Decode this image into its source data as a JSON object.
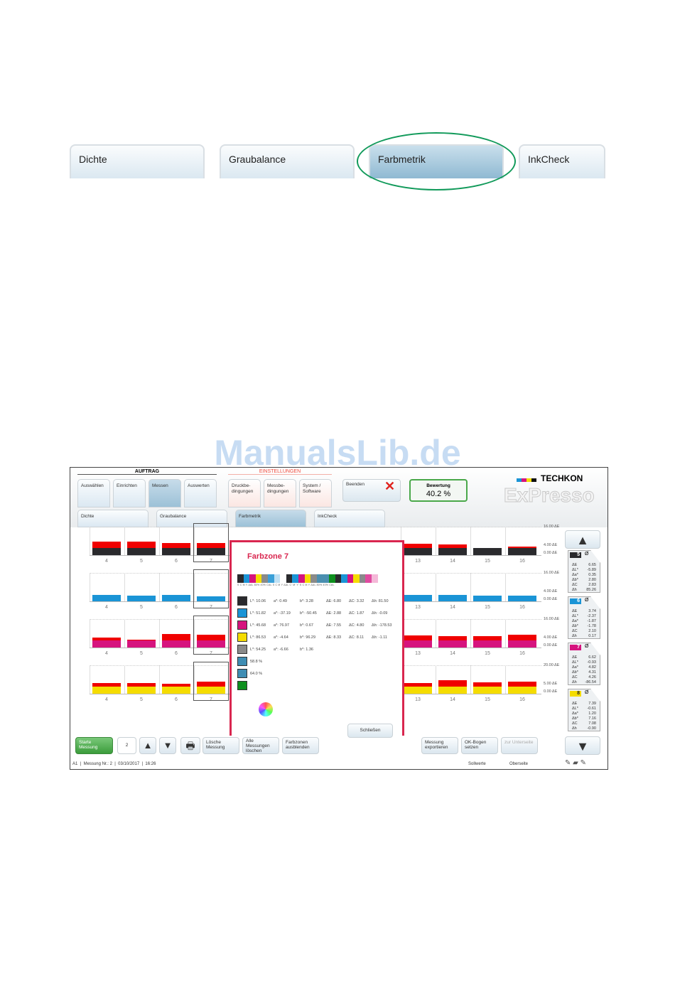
{
  "top_tabs": [
    {
      "label": "Dichte"
    },
    {
      "label": "Graubalance"
    },
    {
      "label": "Farbmetrik",
      "selected": true
    },
    {
      "label": "InkCheck"
    }
  ],
  "highlight_color": "#119a5a",
  "watermark": "ManualsLib.de",
  "app": {
    "group_auftrag": "AUFTRAG",
    "group_einstellungen": "EINSTELLUNGEN",
    "nav": [
      "Auswählen",
      "Einrichten",
      "Messen",
      "Auswerten"
    ],
    "settings": [
      "Druckbe-\ndingungen",
      "Messbe-\ndingungen",
      "System /\nSoftware"
    ],
    "quit": "Beenden",
    "rating_label": "Bewertung",
    "rating_value": "40.2 %",
    "brand": "TECHKON",
    "product": "ExPresso",
    "subtabs": [
      "Dichte",
      "Graubalance",
      "Farbmetrik",
      "InkCheck"
    ],
    "zones_left": [
      "4",
      "5",
      "6",
      "7"
    ],
    "zones_right": [
      "13",
      "14",
      "15",
      "16"
    ],
    "rows": [
      {
        "color": "#2a2a2d",
        "axis": [
          "16.00 ΔE",
          "4.00 ΔE",
          "0.00 ΔE"
        ],
        "max": 16,
        "tol": 4,
        "values": [
          7.5,
          7.8,
          7.0,
          6.8,
          6.5,
          6.0,
          4.0,
          5.0
        ]
      },
      {
        "color": "#1a94d6",
        "axis": [
          "16.00 ΔE",
          "4.00 ΔE",
          "0.00 ΔE"
        ],
        "max": 16,
        "tol": 4,
        "values": [
          3.8,
          3.4,
          3.8,
          3.0,
          3.8,
          3.6,
          3.2,
          3.2
        ]
      },
      {
        "color": "#d6147e",
        "axis": [
          "16.00 ΔE",
          "4.00 ΔE",
          "0.00 ΔE"
        ],
        "max": 16,
        "tol": 4,
        "values": [
          5.5,
          4.6,
          7.6,
          7.2,
          6.8,
          6.6,
          6.6,
          7.4
        ]
      },
      {
        "color": "#f5dc00",
        "axis": [
          "20.00 ΔE",
          "5.00 ΔE",
          "0.00 ΔE"
        ],
        "max": 20,
        "tol": 5,
        "values": [
          7.4,
          7.4,
          7.2,
          8.6,
          7.6,
          9.4,
          7.8,
          8.6
        ]
      }
    ],
    "exceed_color": "#f00000",
    "cards": [
      {
        "zone": "5",
        "color": "#2a2a2d",
        "avg": "Ø",
        "keys": [
          "ΔE",
          "ΔL*",
          "Δa*",
          "Δb*",
          "ΔC",
          "Δh"
        ],
        "vals": [
          "6.65",
          "-5.89",
          "0.35",
          "2.80",
          "2.83",
          "85.26"
        ]
      },
      {
        "zone": "6",
        "color": "#1a94d6",
        "avg": "Ø",
        "keys": [
          "ΔE",
          "ΔL*",
          "Δa*",
          "Δb*",
          "ΔC",
          "Δh"
        ],
        "vals": [
          "3.74",
          "-2.37",
          "-1.87",
          "-1.78",
          "2.10",
          "0.17"
        ]
      },
      {
        "zone": "7",
        "color": "#d6147e",
        "avg": "Ø",
        "keys": [
          "ΔE",
          "ΔL*",
          "Δa*",
          "Δb*",
          "ΔC",
          "Δh"
        ],
        "vals": [
          "6.62",
          "-0.93",
          "4.82",
          "4.31",
          "4.26",
          "-86.54"
        ]
      },
      {
        "zone": "8",
        "color": "#f5dc00",
        "avg": "Ø",
        "keys": [
          "ΔE",
          "ΔL*",
          "Δa*",
          "Δb*",
          "ΔC",
          "Δh"
        ],
        "vals": [
          "7.39",
          "-0.61",
          "1.20",
          "7.16",
          "7.08",
          "-0.90"
        ]
      }
    ],
    "popup": {
      "title": "Farbzone 7",
      "strip": [
        "#2a2a2d",
        "#1a94d6",
        "#d6147e",
        "#f5dc00",
        "#8a8a8a",
        "#3aa0d8",
        "#bfe0f3",
        "#ffffff",
        "#2a2a2d",
        "#1a94d6",
        "#d6147e",
        "#f5dc00",
        "#8a8a8a",
        "#4a8fb0",
        "#4a8fb0",
        "#0e8f1e",
        "#2a2a2d",
        "#1a94d6",
        "#d6147e",
        "#f5dc00",
        "#8a8a8a",
        "#e04aa0",
        "#f4b8d8",
        "#ffffff"
      ],
      "strip_labels": "S C M Y ΔAL 80% 40% CAL S C M Y ΔAL C' M' Y' S C M Y ΔAL 80% 40% CAL",
      "rows": [
        {
          "color": "#2a2a2d",
          "L": "L*: 10.06",
          "a": "a*: 0.49",
          "b": "b*: 3.28",
          "dE": "ΔE: 6.80",
          "dC": "ΔC: 3.32",
          "dh": "Δh: 81.50"
        },
        {
          "color": "#1a94d6",
          "L": "L*: 51.82",
          "a": "a*: -37.19",
          "b": "b*: -50.45",
          "dE": "ΔE: 2.88",
          "dC": "ΔC: 1.87",
          "dh": "Δh: -0.09"
        },
        {
          "color": "#d6147e",
          "L": "L*: 45.68",
          "a": "a*: 76.97",
          "b": "b*: 0.67",
          "dE": "ΔE: 7.55",
          "dC": "ΔC: 4.80",
          "dh": "Δh: -178.53"
        },
        {
          "color": "#f5dc00",
          "L": "L*: 86.53",
          "a": "a*: -4.64",
          "b": "b*: 96.29",
          "dE": "ΔE: 8.33",
          "dC": "ΔC: 8.11",
          "dh": "Δh: -1.11"
        },
        {
          "color": "#8a8a8a",
          "L": "L*: 54.25",
          "a": "a*: -6.66",
          "b": "b*: 1.36"
        },
        {
          "color": "#3f8db3",
          "L": "58.8 %"
        },
        {
          "color": "#3f8db3",
          "L": "64.0 %"
        },
        {
          "color": "#0e8f1e"
        }
      ],
      "close": "Schließen"
    },
    "toolbar": {
      "start": "Starte\nMessung",
      "count": "2",
      "delete": "Lösche\nMessung",
      "delete_all": "Alle\nMessungen\nlöschen",
      "hide_zones": "Farbzonen\nausblenden",
      "export": "Messung\nexportieren",
      "ok_sheet": "OK-Bogen\nsetzen",
      "underside": "zur Unterseite"
    },
    "status": {
      "left": "A1  |  Messung Nr.: 2  |  03/10/2017  |  16:26",
      "sollwerte": "Sollwerte",
      "oberseite": "Oberseite"
    }
  }
}
